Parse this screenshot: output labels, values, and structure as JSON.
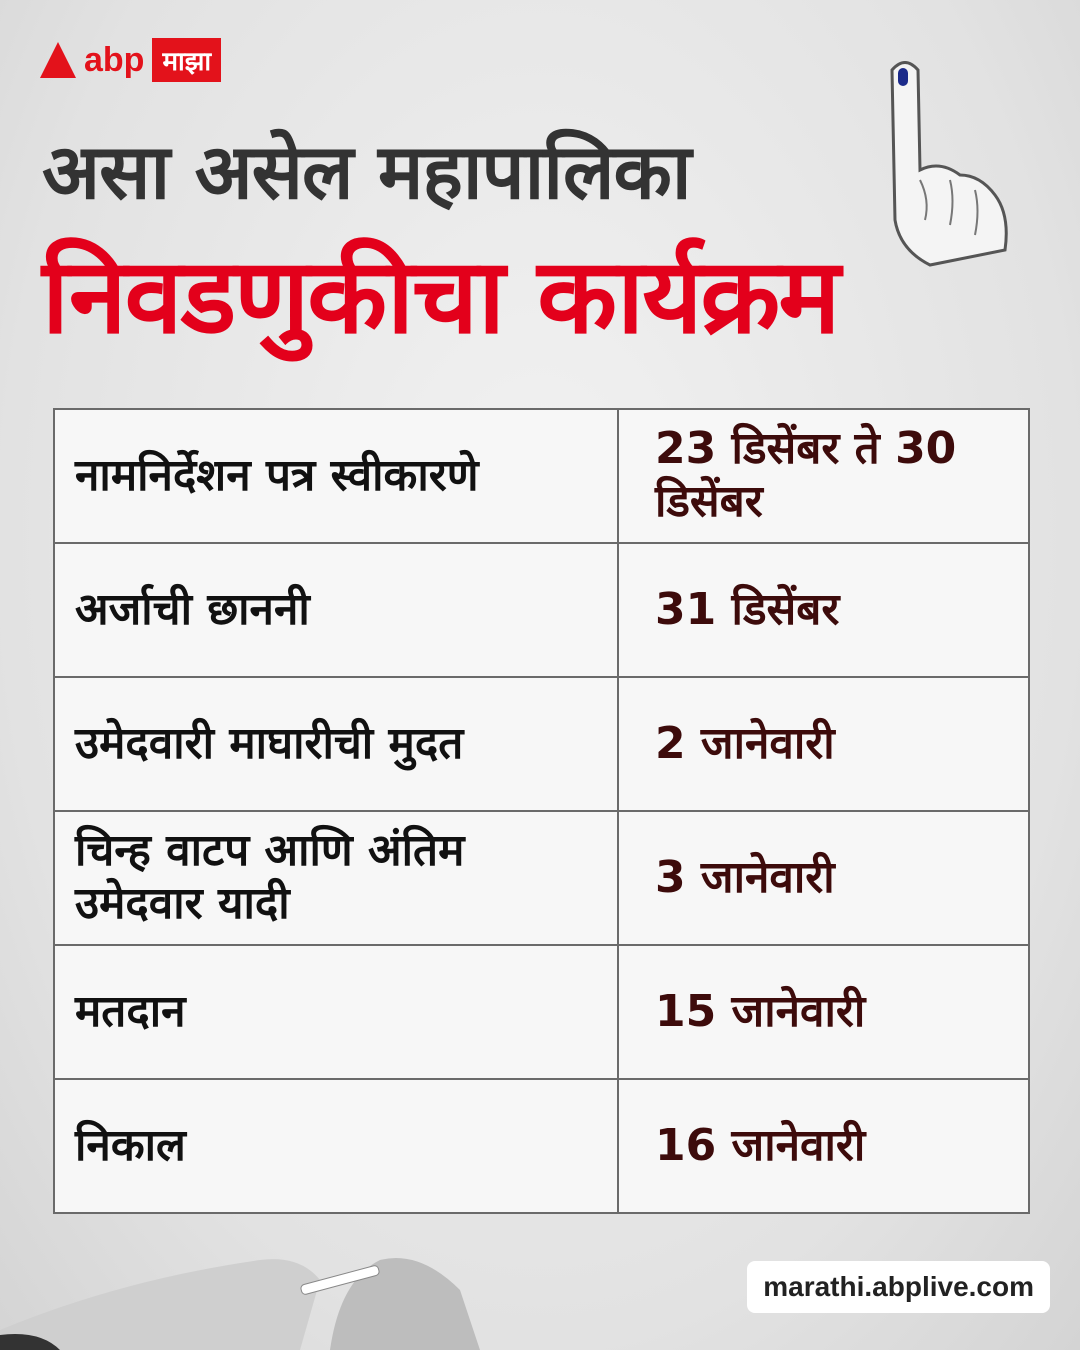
{
  "brand": {
    "name": "abp",
    "badge": "माझा",
    "color": "#e3121b"
  },
  "title": {
    "line1": "असा असेल महापालिका",
    "line2": "निवडणुकीचा कार्यक्रम",
    "line1_color": "#333333",
    "line2_color": "#e3001b"
  },
  "schedule": [
    {
      "event": "नामनिर्देशन पत्र स्वीकारणे",
      "date": "23 डिसेंबर ते 30 डिसेंबर"
    },
    {
      "event": "अर्जाची छाननी",
      "date": "31 डिसेंबर"
    },
    {
      "event": "उमेदवारी माघारीची मुदत",
      "date": "2 जानेवारी"
    },
    {
      "event": "चिन्ह वाटप आणि अंतिम उमेदवार यादी",
      "date": "3 जानेवारी"
    },
    {
      "event": "मतदान",
      "date": "15 जानेवारी"
    },
    {
      "event": "निकाल",
      "date": "16 जानेवारी"
    }
  ],
  "footer": {
    "url": "marathi.abplive.com"
  },
  "icons": {
    "finger": "inked-finger-icon"
  }
}
